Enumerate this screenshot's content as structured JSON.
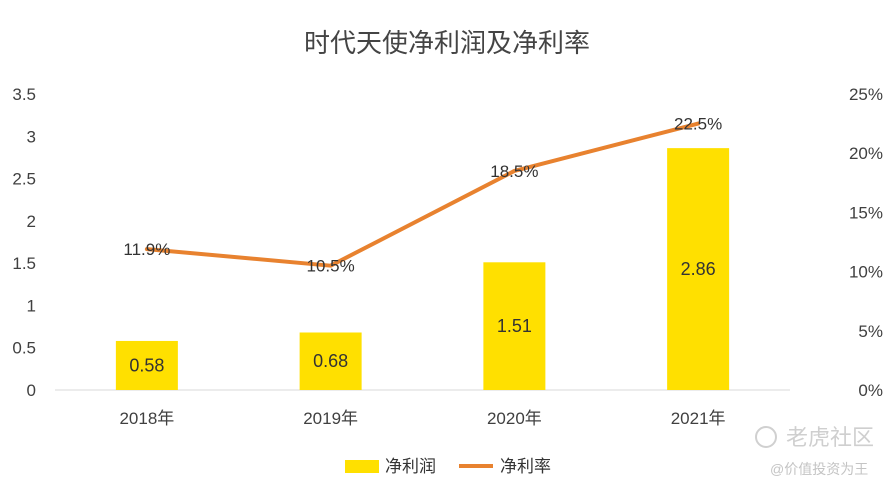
{
  "chart_data": {
    "type": "bar+line",
    "title": "时代天使净利润及净利率",
    "categories": [
      "2018年",
      "2019年",
      "2020年",
      "2021年"
    ],
    "series": [
      {
        "name": "净利润",
        "type": "bar",
        "axis": "left",
        "values": [
          0.58,
          0.68,
          1.51,
          2.86
        ],
        "labels": [
          "0.58",
          "0.68",
          "1.51",
          "2.86"
        ],
        "color": "#FFE000"
      },
      {
        "name": "净利率",
        "type": "line",
        "axis": "right",
        "values": [
          11.9,
          10.5,
          18.5,
          22.5
        ],
        "labels": [
          "11.9%",
          "10.5%",
          "18.5%",
          "22.5%"
        ],
        "color": "#E8822F"
      }
    ],
    "left_axis": {
      "min": 0,
      "max": 3.5,
      "ticks": [
        "0",
        "0.5",
        "1",
        "1.5",
        "2",
        "2.5",
        "3",
        "3.5"
      ]
    },
    "right_axis": {
      "min": 0,
      "max": 25,
      "ticks": [
        "0%",
        "5%",
        "10%",
        "15%",
        "20%",
        "25%"
      ]
    },
    "grid": false,
    "legend": "bottom"
  },
  "watermark": {
    "brand": "老虎社区",
    "author": "@价值投资为王"
  }
}
